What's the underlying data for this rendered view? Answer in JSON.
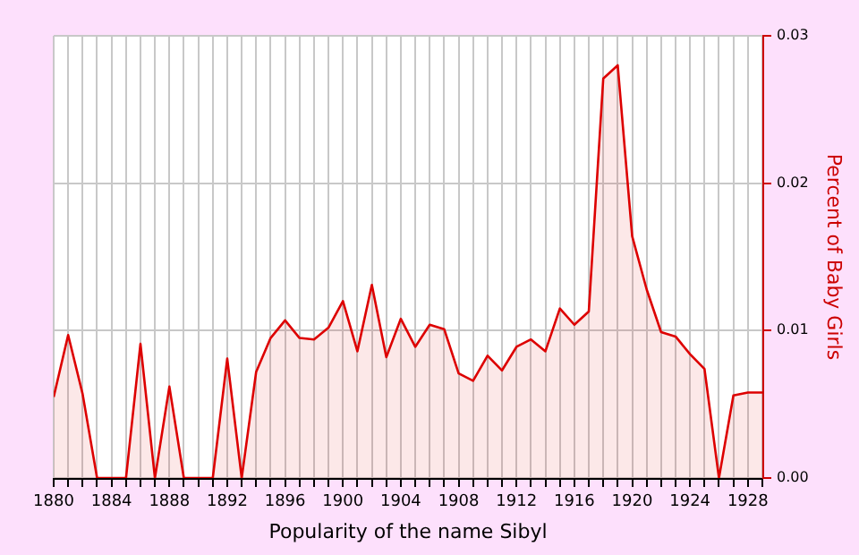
{
  "chart_data": {
    "type": "area",
    "xlabel": "Popularity of the name Sibyl",
    "ylabel": "Percent of Baby Girls",
    "x": [
      1880,
      1881,
      1882,
      1883,
      1884,
      1885,
      1886,
      1887,
      1888,
      1889,
      1890,
      1891,
      1892,
      1893,
      1894,
      1895,
      1896,
      1897,
      1898,
      1899,
      1900,
      1901,
      1902,
      1903,
      1904,
      1905,
      1906,
      1907,
      1908,
      1909,
      1910,
      1911,
      1912,
      1913,
      1914,
      1915,
      1916,
      1917,
      1918,
      1919,
      1920,
      1921,
      1922,
      1923,
      1924,
      1925,
      1926,
      1927,
      1928,
      1929
    ],
    "series": [
      {
        "color": "#dd0000",
        "values": [
          0.0055,
          0.0097,
          0.0057,
          0,
          0,
          0,
          0.0091,
          0,
          0.0062,
          0,
          0,
          0,
          0.0081,
          0,
          0.0072,
          0.0095,
          0.0107,
          0.0095,
          0.0094,
          0.0102,
          0.012,
          0.0086,
          0.0131,
          0.0082,
          0.0108,
          0.0089,
          0.0104,
          0.0101,
          0.0071,
          0.0066,
          0.0083,
          0.0073,
          0.0089,
          0.0094,
          0.0086,
          0.0115,
          0.0104,
          0.0113,
          0.0271,
          0.028,
          0.0164,
          0.0128,
          0.0099,
          0.0096,
          0.0084,
          0.0074,
          0,
          0.0056,
          0.0058,
          0.0058
        ]
      }
    ],
    "xlim": [
      1880,
      1929
    ],
    "xticks": [
      1880,
      {
        "value": 1881,
        "label": null
      },
      {
        "value": 1882,
        "label": null
      },
      {
        "value": 1883,
        "label": null
      },
      1884,
      {
        "value": 1885,
        "label": null
      },
      {
        "value": 1886,
        "label": null
      },
      {
        "value": 1887,
        "label": null
      },
      1888,
      {
        "value": 1889,
        "label": null
      },
      {
        "value": 1890,
        "label": null
      },
      {
        "value": 1891,
        "label": null
      },
      1892,
      {
        "value": 1893,
        "label": null
      },
      {
        "value": 1894,
        "label": null
      },
      {
        "value": 1895,
        "label": null
      },
      1896,
      {
        "value": 1897,
        "label": null
      },
      {
        "value": 1898,
        "label": null
      },
      {
        "value": 1899,
        "label": null
      },
      1900,
      {
        "value": 1901,
        "label": null
      },
      {
        "value": 1902,
        "label": null
      },
      {
        "value": 1903,
        "label": null
      },
      1904,
      {
        "value": 1905,
        "label": null
      },
      {
        "value": 1906,
        "label": null
      },
      {
        "value": 1907,
        "label": null
      },
      1908,
      {
        "value": 1909,
        "label": null
      },
      {
        "value": 1910,
        "label": null
      },
      {
        "value": 1911,
        "label": null
      },
      1912,
      {
        "value": 1913,
        "label": null
      },
      {
        "value": 1914,
        "label": null
      },
      {
        "value": 1915,
        "label": null
      },
      1916,
      {
        "value": 1917,
        "label": null
      },
      {
        "value": 1918,
        "label": null
      },
      {
        "value": 1919,
        "label": null
      },
      1920,
      {
        "value": 1921,
        "label": null
      },
      {
        "value": 1922,
        "label": null
      },
      {
        "value": 1923,
        "label": null
      },
      1924,
      {
        "value": 1925,
        "label": null
      },
      {
        "value": 1926,
        "label": null
      },
      {
        "value": 1927,
        "label": null
      },
      1928,
      {
        "value": 1929,
        "label": null
      }
    ],
    "ylim": [
      0,
      0.03
    ],
    "yticks": [
      {
        "value": 0,
        "label": "0.00"
      },
      {
        "value": 0.01,
        "label": "0.01"
      },
      {
        "value": 0.02,
        "label": "0.02"
      },
      {
        "value": 0.03,
        "label": "0.03"
      }
    ],
    "grid": true,
    "legend": false,
    "marker": "none",
    "line_style": "solid"
  }
}
